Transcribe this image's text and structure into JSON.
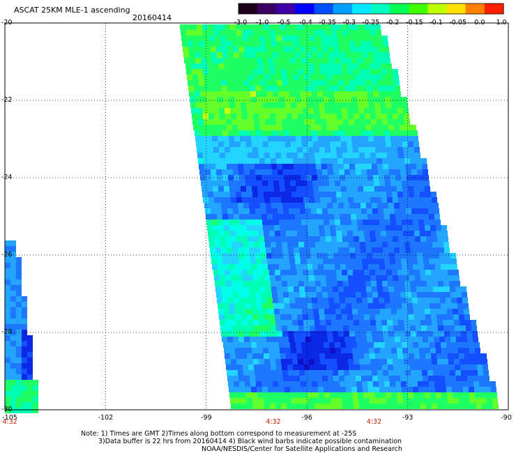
{
  "header": {
    "title": "ASCAT 25KM MLE-1 ascending",
    "date": "20160414"
  },
  "colorbar": {
    "labels": [
      "-3.0",
      "-1.0",
      "-0.5",
      "-0.4",
      "-0.35",
      "-0.3",
      "-0.25",
      "-0.2",
      "-0.15",
      "-0.1",
      "-0.05",
      "0.0",
      "1.0"
    ],
    "colors": [
      "#1a0018",
      "#3a0060",
      "#4000a8",
      "#0000ff",
      "#0050ff",
      "#00a0ff",
      "#00e8ff",
      "#00ffc0",
      "#00ff50",
      "#40ff00",
      "#c0ff00",
      "#ffe000",
      "#ff8000",
      "#ff2000"
    ]
  },
  "map": {
    "lat_labels": [
      "-20",
      "-22",
      "-24",
      "-26",
      "-28",
      "-30"
    ],
    "lon_labels": [
      "-105",
      "-102",
      "-99",
      "-96",
      "-93",
      "-90"
    ],
    "lat_range": [
      -30,
      -20
    ],
    "lon_range": [
      -105,
      -90
    ],
    "time_labels": [
      {
        "lon": -105,
        "text": "4:32"
      },
      {
        "lon": -97,
        "text": "4:32"
      },
      {
        "lon": -94,
        "text": "4:32"
      }
    ]
  },
  "notes": {
    "line1": "Note: 1) Times are GMT 2)Times along bottom correspond to measurement at -25S",
    "line2": "3)Data buffer is 22 hrs from 20160414 4) Black wind barbs indicate possible contamination",
    "line3": "NOAA/NESDIS/Center for Satellite Applications and Research"
  }
}
